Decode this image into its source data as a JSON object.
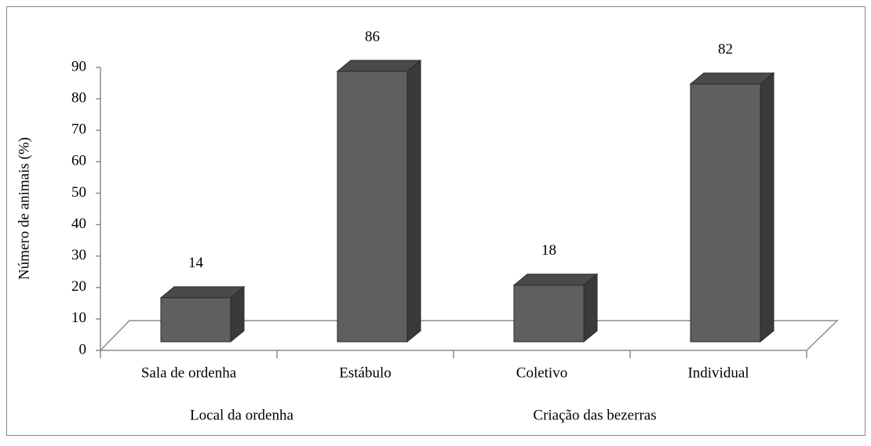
{
  "chart_data": {
    "type": "bar3d",
    "y_label": "Número de animais (%)",
    "categories": [
      "Sala de ordenha",
      "Estábulo",
      "Coletivo",
      "Individual"
    ],
    "values": [
      14,
      86,
      18,
      82
    ],
    "group_labels": [
      "Local da ordenha",
      "Criação das bezerras"
    ],
    "color": "#5f5f5f",
    "ylim": [
      0,
      90
    ],
    "yticks": [
      0,
      10,
      20,
      30,
      40,
      50,
      60,
      70,
      80,
      90
    ]
  }
}
